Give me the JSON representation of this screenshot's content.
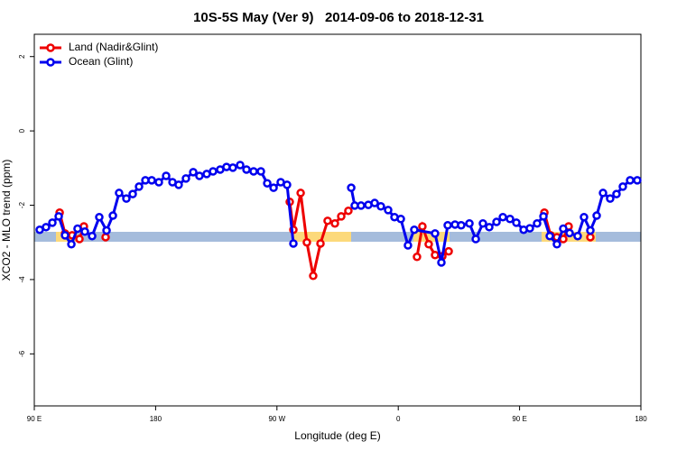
{
  "chart_data": {
    "type": "line",
    "title": "10S-5S May (Ver 9)   2014-09-06 to 2018-12-31",
    "x_label": "Longitude (deg E)",
    "y_label": "XCO2 - MLO trend (ppm)",
    "xlim": [
      90,
      540
    ],
    "xticks": [
      {
        "value": 90,
        "label": "90 E"
      },
      {
        "value": 180,
        "label": "180"
      },
      {
        "value": 270,
        "label": "90 W"
      },
      {
        "value": 360,
        "label": "0"
      },
      {
        "value": 450,
        "label": "90 E"
      },
      {
        "value": 540,
        "label": "180"
      }
    ],
    "ylim": [
      -7.4,
      2.6
    ],
    "yticks": [
      2,
      0,
      -2,
      -4,
      -6
    ],
    "legend": "top-left",
    "series": [
      {
        "name": "Land (Nadir&Glint)",
        "color": "#ee0000",
        "x": [
          108.8,
          112.8,
          118.1,
          123.5,
          126.8,
          null,
          142.9,
          null,
          279.5,
          282.2,
          287.6,
          292.2,
          296.9,
          302.3,
          307.6,
          313.0,
          317.7,
          323.0,
          null,
          373.9,
          377.9,
          382.6,
          387.3,
          392.7,
          397.4,
          null,
          468.4,
          473.0,
          477.7,
          482.4,
          486.4,
          null,
          502.5
        ],
        "values": [
          -2.2,
          -2.76,
          -2.81,
          -2.91,
          -2.57,
          null,
          -2.86,
          null,
          -1.91,
          -2.66,
          -1.67,
          -3.0,
          -3.9,
          -3.03,
          -2.42,
          -2.49,
          -2.3,
          -2.15,
          null,
          -3.39,
          -2.57,
          -3.05,
          -3.34,
          -3.37,
          -3.24,
          null,
          -2.2,
          -2.81,
          -2.86,
          -2.91,
          -2.57,
          null,
          -2.86
        ]
      },
      {
        "name": "Ocean (Glint)",
        "color": "#0000ee",
        "x": [
          94.0,
          98.7,
          103.4,
          108.1,
          112.8,
          117.5,
          122.1,
          127.5,
          132.9,
          138.2,
          143.6,
          148.3,
          152.9,
          158.3,
          163.0,
          167.7,
          172.4,
          177.1,
          182.4,
          187.8,
          192.5,
          197.1,
          202.5,
          207.9,
          212.5,
          217.9,
          222.6,
          227.9,
          232.6,
          237.3,
          242.7,
          247.4,
          252.7,
          258.1,
          262.8,
          267.5,
          272.8,
          277.5,
          282.2,
          null,
          325.1,
          327.7,
          332.4,
          337.8,
          342.5,
          347.1,
          352.5,
          357.2,
          361.9,
          367.2,
          371.9,
          387.3,
          392.0,
          396.7,
          402.1,
          406.7,
          412.8,
          417.5,
          422.8,
          427.5,
          432.9,
          437.6,
          442.9,
          447.6,
          453.0,
          457.6,
          463.0,
          467.7,
          472.4,
          477.7,
          482.4,
          487.1,
          493.1,
          497.8,
          502.5,
          507.2,
          511.9,
          517.2,
          521.9,
          526.6,
          532.0,
          537.3
        ],
        "values": [
          -2.66,
          -2.59,
          -2.47,
          -2.3,
          -2.81,
          -3.05,
          -2.63,
          -2.71,
          -2.83,
          -2.32,
          -2.68,
          -2.28,
          -1.67,
          -1.82,
          -1.7,
          -1.5,
          -1.33,
          -1.33,
          -1.38,
          -1.21,
          -1.38,
          -1.45,
          -1.28,
          -1.11,
          -1.21,
          -1.16,
          -1.09,
          -1.04,
          -0.97,
          -0.99,
          -0.92,
          -1.04,
          -1.09,
          -1.09,
          -1.41,
          -1.53,
          -1.38,
          -1.45,
          -3.03,
          null,
          -1.53,
          -2.01,
          -2.01,
          -1.99,
          -1.94,
          -2.03,
          -2.13,
          -2.32,
          -2.37,
          -3.08,
          -2.66,
          -2.76,
          -3.54,
          -2.54,
          -2.52,
          -2.54,
          -2.49,
          -2.91,
          -2.49,
          -2.59,
          -2.45,
          -2.32,
          -2.37,
          -2.47,
          -2.66,
          -2.62,
          -2.49,
          -2.3,
          -2.83,
          -3.05,
          -2.63,
          -2.75,
          -2.83,
          -2.32,
          -2.68,
          -2.28,
          -1.67,
          -1.82,
          -1.7,
          -1.5,
          -1.33,
          -1.33
        ]
      }
    ]
  }
}
